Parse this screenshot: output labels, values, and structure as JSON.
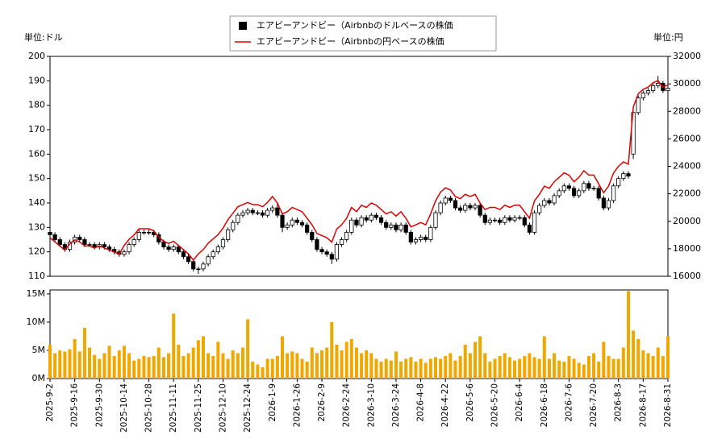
{
  "chart_data": {
    "type": "candlestick",
    "y_label": "単位:ドル",
    "y2_label": "単位:円",
    "categories": [
      "2025-9-2",
      null,
      null,
      null,
      null,
      "2025-9-16",
      null,
      null,
      null,
      null,
      "2025-9-30",
      null,
      null,
      null,
      null,
      "2025-10-14",
      null,
      null,
      null,
      null,
      "2025-10-28",
      null,
      null,
      null,
      null,
      "2025-11-11",
      null,
      null,
      null,
      null,
      "2025-11-25",
      null,
      null,
      null,
      null,
      "2025-12-10",
      null,
      null,
      null,
      null,
      "2025-12-24",
      null,
      null,
      null,
      null,
      "2026-1-9",
      null,
      null,
      null,
      null,
      "2026-1-26",
      null,
      null,
      null,
      null,
      "2026-2-9",
      null,
      null,
      null,
      null,
      "2026-2-24",
      null,
      null,
      null,
      null,
      "2026-3-10",
      null,
      null,
      null,
      null,
      "2026-3-24",
      null,
      null,
      null,
      null,
      "2026-4-8",
      null,
      null,
      null,
      null,
      "2026-4-22",
      null,
      null,
      null,
      null,
      "2026-5-6",
      null,
      null,
      null,
      null,
      "2026-5-20",
      null,
      null,
      null,
      null,
      "2026-6-4",
      null,
      null,
      null,
      null,
      "2026-6-18",
      null,
      null,
      null,
      null,
      "2026-7-6",
      null,
      null,
      null,
      null,
      "2026-7-20",
      null,
      null,
      null,
      null,
      "2026-8-3",
      null,
      null,
      null,
      null,
      "2026-8-17",
      null,
      null,
      null,
      null,
      "2026-8-31"
    ],
    "series": [
      {
        "name": "エアビーアンドビー（Airbnbのドルベースの株価",
        "color": "#000000",
        "open": [
          128,
          127,
          125,
          123,
          121,
          124,
          126,
          125,
          123,
          123,
          122,
          123,
          122,
          121,
          120,
          119,
          120,
          123,
          125,
          128,
          128,
          128,
          127,
          124,
          122,
          121,
          122,
          120,
          118,
          116,
          113,
          113,
          115,
          118,
          120,
          122,
          125,
          129,
          132,
          135,
          136,
          137,
          136,
          136,
          135,
          137,
          138,
          135,
          130,
          131,
          133,
          132,
          131,
          128,
          125,
          121,
          120,
          119,
          117,
          123,
          125,
          128,
          133,
          131,
          134,
          133,
          135,
          134,
          132,
          130,
          131,
          129,
          131,
          128,
          124,
          125,
          126,
          125,
          130,
          136,
          140,
          142,
          141,
          138,
          137,
          139,
          138,
          139,
          135,
          132,
          133,
          133,
          132,
          134,
          133,
          134,
          134,
          131,
          128,
          136,
          139,
          141,
          140,
          143,
          145,
          147,
          146,
          143,
          145,
          148,
          146,
          146,
          142,
          138,
          141,
          147,
          150,
          152,
          160,
          177,
          183,
          185,
          186,
          188,
          189,
          186
        ],
        "high": [
          129,
          128,
          126,
          124,
          125,
          127,
          127,
          126,
          124,
          124,
          124,
          124,
          123,
          122,
          121,
          121,
          124,
          126,
          129,
          129,
          129,
          129,
          128,
          125,
          123,
          123,
          123,
          121,
          119,
          117,
          114,
          116,
          119,
          121,
          123,
          126,
          130,
          133,
          136,
          137,
          138,
          138,
          137,
          137,
          138,
          139,
          140,
          136,
          132,
          134,
          134,
          133,
          132,
          129,
          126,
          122,
          121,
          120,
          124,
          126,
          129,
          134,
          134,
          135,
          135,
          136,
          136,
          135,
          133,
          132,
          132,
          132,
          132,
          129,
          126,
          127,
          127,
          131,
          137,
          141,
          143,
          143,
          142,
          139,
          140,
          140,
          140,
          140,
          136,
          134,
          134,
          134,
          135,
          135,
          135,
          135,
          135,
          132,
          137,
          140,
          142,
          142,
          144,
          146,
          148,
          148,
          147,
          146,
          149,
          149,
          147,
          147,
          143,
          142,
          148,
          151,
          153,
          153,
          178,
          184,
          186,
          187,
          189,
          192,
          190,
          188
        ],
        "low": [
          126,
          124,
          122,
          120,
          120,
          123,
          124,
          122,
          122,
          121,
          121,
          121,
          120,
          119,
          118,
          118,
          119,
          122,
          124,
          127,
          127,
          126,
          123,
          121,
          120,
          120,
          119,
          117,
          115,
          112,
          111,
          112,
          114,
          117,
          119,
          121,
          124,
          128,
          131,
          134,
          135,
          135,
          135,
          134,
          134,
          136,
          134,
          128,
          129,
          130,
          131,
          130,
          127,
          124,
          120,
          119,
          118,
          115,
          116,
          122,
          124,
          127,
          130,
          130,
          132,
          132,
          133,
          131,
          129,
          129,
          128,
          128,
          127,
          123,
          123,
          124,
          124,
          124,
          129,
          135,
          139,
          140,
          137,
          136,
          136,
          137,
          137,
          134,
          131,
          131,
          132,
          131,
          131,
          132,
          132,
          133,
          130,
          127,
          127,
          135,
          138,
          139,
          139,
          142,
          144,
          145,
          142,
          142,
          144,
          145,
          145,
          141,
          137,
          137,
          140,
          146,
          149,
          150,
          158,
          176,
          182,
          184,
          185,
          187,
          185,
          185
        ],
        "close": [
          127,
          125,
          123,
          121,
          124,
          126,
          125,
          123,
          123,
          122,
          123,
          122,
          121,
          120,
          119,
          120,
          123,
          125,
          128,
          128,
          128,
          127,
          124,
          122,
          121,
          122,
          120,
          118,
          116,
          113,
          113,
          115,
          118,
          120,
          122,
          125,
          129,
          132,
          135,
          136,
          137,
          136,
          136,
          135,
          137,
          138,
          135,
          130,
          131,
          133,
          132,
          131,
          128,
          125,
          121,
          120,
          119,
          117,
          123,
          125,
          128,
          133,
          131,
          134,
          133,
          135,
          134,
          132,
          130,
          131,
          129,
          131,
          128,
          124,
          125,
          126,
          125,
          130,
          136,
          140,
          142,
          141,
          138,
          137,
          139,
          138,
          139,
          135,
          132,
          133,
          133,
          132,
          134,
          133,
          134,
          134,
          131,
          128,
          136,
          139,
          141,
          140,
          143,
          145,
          147,
          146,
          143,
          145,
          148,
          146,
          146,
          142,
          138,
          141,
          147,
          150,
          152,
          151,
          177,
          183,
          185,
          186,
          188,
          189,
          186,
          187
        ]
      },
      {
        "name": "エアビーアンドビー（Airbnbの円ベースの株価",
        "color": "#dd0000",
        "axis": "y2",
        "values": [
          18796,
          18500,
          18204,
          17908,
          18352,
          18648,
          18500,
          18204,
          18204,
          18056,
          18204,
          18056,
          17908,
          17760,
          17612,
          18240,
          18696,
          19000,
          19456,
          19456,
          19456,
          19304,
          18848,
          18544,
          18392,
          18544,
          18240,
          17936,
          17632,
          17176,
          17628,
          17940,
          18408,
          18720,
          19032,
          19500,
          20124,
          20592,
          21060,
          21216,
          21372,
          21216,
          21216,
          21060,
          21372,
          21804,
          21330,
          20540,
          20698,
          21014,
          20856,
          20698,
          20224,
          19750,
          19118,
          18960,
          18802,
          18486,
          19434,
          19750,
          20224,
          21014,
          20698,
          21172,
          21014,
          21330,
          21172,
          20856,
          20540,
          20698,
          20382,
          20698,
          20224,
          19592,
          19750,
          19908,
          19750,
          20540,
          21488,
          22120,
          22436,
          22278,
          21804,
          21646,
          21962,
          21804,
          21962,
          21330,
          20856,
          21014,
          21014,
          20856,
          21172,
          21014,
          21172,
          21172,
          20698,
          20224,
          21488,
          21962,
          22560,
          22400,
          22880,
          23200,
          23520,
          23360,
          22880,
          23200,
          23680,
          23360,
          23360,
          22720,
          22080,
          22560,
          23520,
          24000,
          24320,
          24160,
          28320,
          29280,
          29600,
          29760,
          30080,
          30240,
          29760,
          29920
        ]
      }
    ],
    "ylim": [
      110,
      200
    ],
    "yticks": [
      110,
      120,
      130,
      140,
      150,
      160,
      170,
      180,
      190,
      200
    ],
    "y2lim": [
      16000,
      32000
    ],
    "y2ticks": [
      16000,
      18000,
      20000,
      22000,
      24000,
      26000,
      28000,
      30000,
      32000
    ],
    "volume": {
      "color": "#f0a800",
      "values": [
        6.0,
        4.5,
        5.0,
        4.8,
        5.2,
        7.0,
        4.8,
        9.0,
        5.5,
        4.2,
        3.5,
        4.5,
        5.8,
        4.0,
        5.0,
        5.8,
        4.5,
        3.2,
        3.5,
        4.0,
        3.8,
        4.0,
        5.5,
        3.8,
        4.5,
        11.5,
        6.0,
        4.0,
        4.5,
        5.5,
        6.8,
        7.5,
        4.5,
        4.0,
        6.5,
        4.5,
        3.5,
        5.0,
        4.5,
        5.5,
        10.5,
        3.0,
        2.5,
        2.0,
        3.5,
        3.5,
        4.0,
        7.5,
        4.5,
        4.8,
        4.5,
        3.5,
        3.0,
        5.5,
        4.5,
        5.0,
        5.5,
        10.0,
        6.0,
        5.0,
        6.5,
        7.0,
        5.5,
        4.5,
        5.0,
        4.5,
        3.5,
        3.0,
        3.5,
        3.2,
        4.8,
        3.0,
        3.5,
        3.8,
        3.0,
        3.5,
        2.8,
        3.5,
        3.8,
        3.5,
        4.0,
        4.5,
        3.2,
        4.0,
        6.0,
        4.5,
        6.5,
        7.5,
        4.5,
        3.0,
        3.5,
        4.0,
        4.5,
        3.8,
        3.2,
        3.5,
        4.0,
        4.5,
        3.8,
        3.5,
        7.5,
        3.5,
        4.5,
        3.2,
        3.0,
        4.0,
        3.5,
        2.8,
        2.5,
        4.0,
        4.5,
        3.0,
        6.5,
        4.0,
        3.5,
        3.5,
        5.5,
        15.5,
        8.5,
        7.0,
        5.0,
        4.5,
        4.0,
        5.5,
        4.0,
        7.5
      ],
      "ylim": [
        0,
        15.7
      ],
      "yticks": [
        {
          "value": 0,
          "label": "0M"
        },
        {
          "value": 5,
          "label": "5M"
        },
        {
          "value": 10,
          "label": "10M"
        },
        {
          "value": 15,
          "label": "15M"
        }
      ]
    }
  }
}
